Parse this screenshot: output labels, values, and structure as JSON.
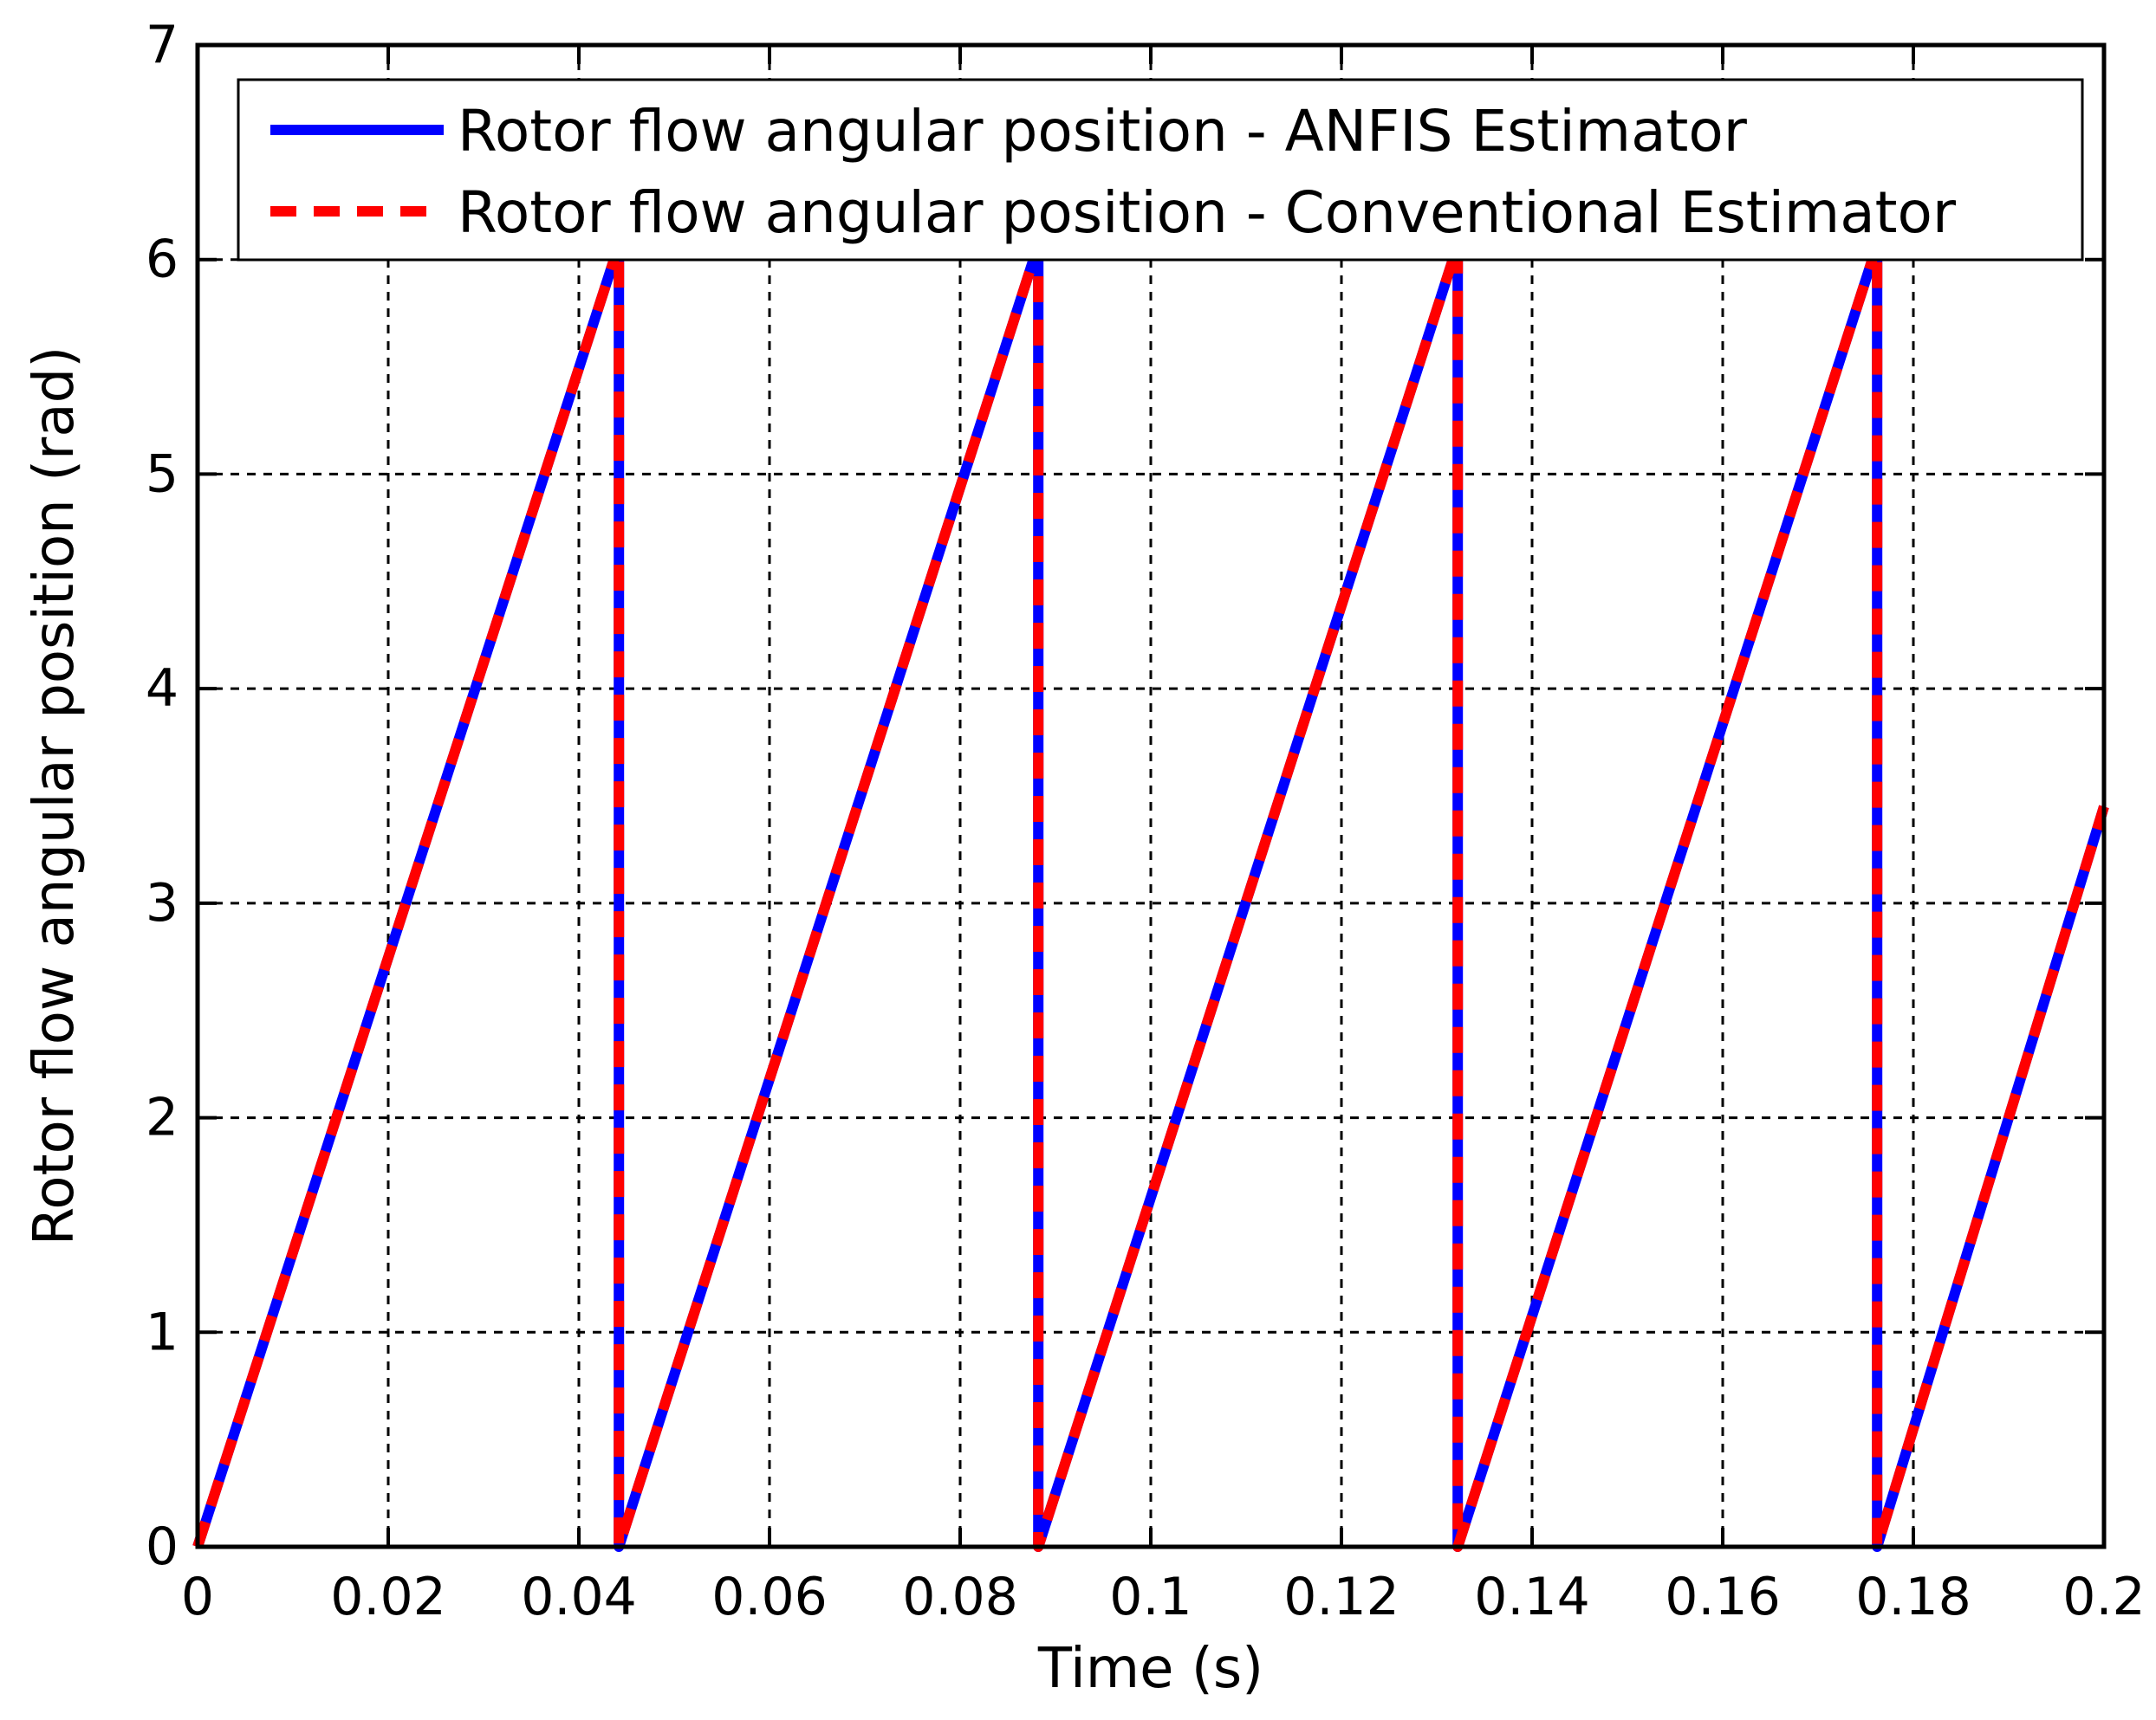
{
  "chart_data": {
    "type": "line",
    "title": "",
    "xlabel": "Time (s)",
    "ylabel": "Rotor flow angular position (rad)",
    "xlim": [
      0,
      0.2
    ],
    "ylim": [
      0,
      7
    ],
    "x_ticks": [
      "0",
      "0.02",
      "0.04",
      "0.06",
      "0.08",
      "0.1",
      "0.12",
      "0.14",
      "0.16",
      "0.18",
      "0.2"
    ],
    "y_ticks": [
      "0",
      "1",
      "2",
      "3",
      "4",
      "5",
      "6",
      "7"
    ],
    "grid": true,
    "legend_position": "top",
    "series": [
      {
        "name": "Rotor flow angular position - ANFIS Estimator",
        "color": "#0000ff",
        "style": "solid",
        "x": [
          0,
          0.0442,
          0.0442,
          0.0442,
          0.0882,
          0.0882,
          0.0882,
          0.1322,
          0.1322,
          0.1322,
          0.1762,
          0.1762,
          0.1762,
          0.2
        ],
        "y": [
          0,
          6.07,
          3.0,
          0,
          6.07,
          3.05,
          0,
          6.07,
          3.05,
          0,
          6.07,
          3.0,
          0,
          3.45
        ]
      },
      {
        "name": "Rotor flow angular position - Conventional Estimator",
        "color": "#ff0000",
        "style": "dashed",
        "x": [
          0,
          0.0442,
          0.0442,
          0.0442,
          0.0882,
          0.0882,
          0.0882,
          0.1322,
          0.1322,
          0.1322,
          0.1762,
          0.1762,
          0.1762,
          0.2
        ],
        "y": [
          0,
          6.07,
          3.0,
          0,
          6.07,
          3.05,
          0,
          6.07,
          3.05,
          0,
          6.07,
          3.0,
          0,
          3.45
        ]
      }
    ]
  }
}
